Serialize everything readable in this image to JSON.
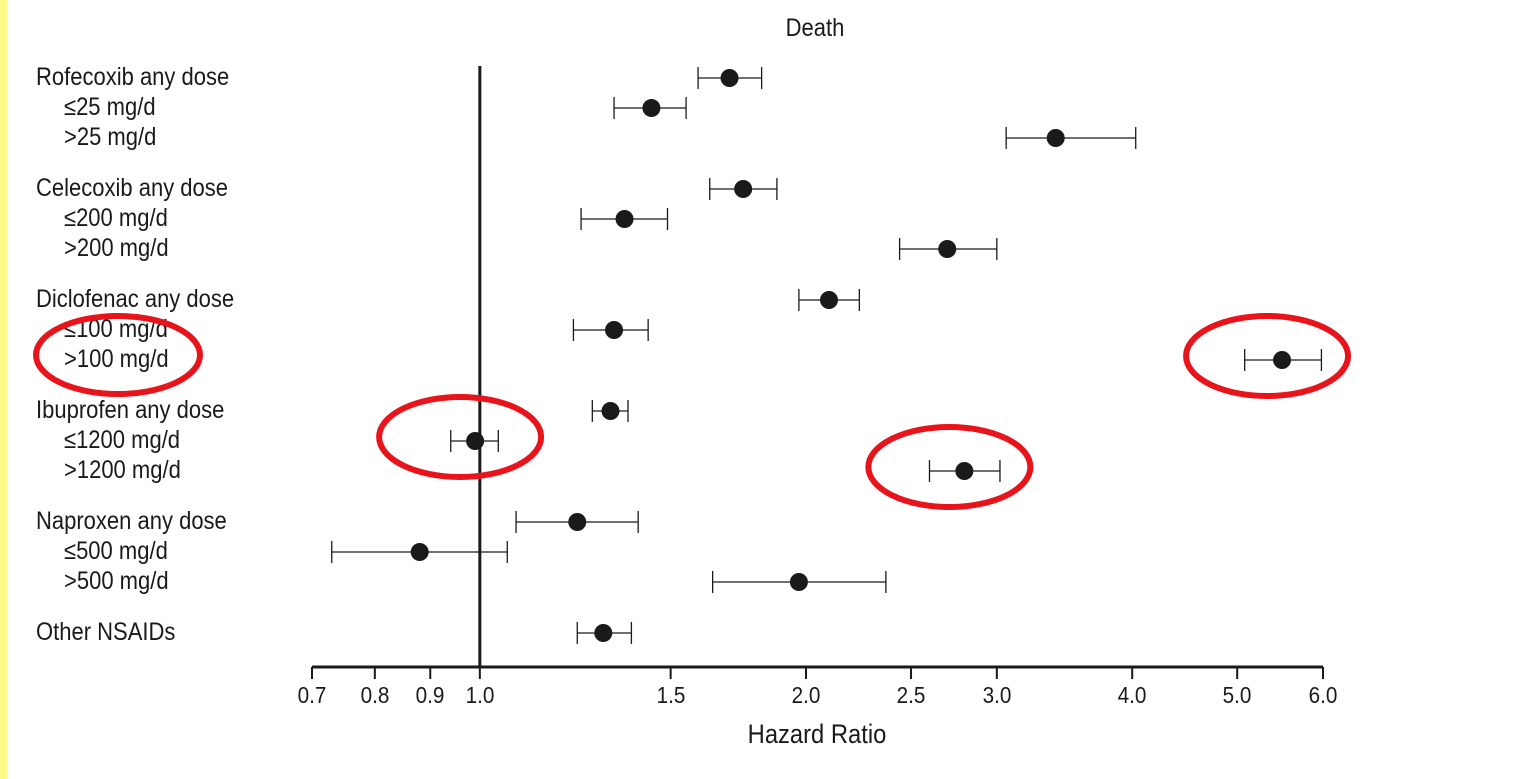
{
  "chart_data": {
    "type": "forest",
    "title": "Death",
    "xlabel": "Hazard Ratio",
    "x_scale": "log",
    "xlim": [
      0.7,
      6.0
    ],
    "reference_line": 1.0,
    "x_ticks": [
      "0.7",
      "0.8",
      "0.9",
      "1.0",
      "1.5",
      "2.0",
      "2.5",
      "3.0",
      "4.0",
      "5.0",
      "6.0"
    ],
    "rows": [
      {
        "label": "Rofecoxib any dose",
        "indent": false,
        "hr": 1.7,
        "ci": [
          1.59,
          1.82
        ]
      },
      {
        "label": "≤25 mg/d",
        "indent": true,
        "hr": 1.44,
        "ci": [
          1.33,
          1.55
        ]
      },
      {
        "label": ">25 mg/d",
        "indent": true,
        "hr": 3.4,
        "ci": [
          3.06,
          4.03
        ]
      },
      {
        "label": "Celecoxib any dose",
        "indent": false,
        "hr": 1.75,
        "ci": [
          1.63,
          1.88
        ]
      },
      {
        "label": "≤200 mg/d",
        "indent": true,
        "hr": 1.36,
        "ci": [
          1.24,
          1.49
        ]
      },
      {
        "label": ">200 mg/d",
        "indent": true,
        "hr": 2.7,
        "ci": [
          2.44,
          3.0
        ]
      },
      {
        "label": "Diclofenac any dose",
        "indent": false,
        "hr": 2.1,
        "ci": [
          1.97,
          2.24
        ]
      },
      {
        "label": "≤100 mg/d",
        "indent": true,
        "hr": 1.33,
        "ci": [
          1.22,
          1.43
        ]
      },
      {
        "label": ">100 mg/d",
        "indent": true,
        "hr": 5.5,
        "ci": [
          5.08,
          5.98
        ]
      },
      {
        "label": "Ibuprofen any dose",
        "indent": false,
        "hr": 1.32,
        "ci": [
          1.27,
          1.37
        ]
      },
      {
        "label": "≤1200 mg/d",
        "indent": true,
        "hr": 0.99,
        "ci": [
          0.94,
          1.04
        ]
      },
      {
        "label": ">1200 mg/d",
        "indent": true,
        "hr": 2.8,
        "ci": [
          2.6,
          3.02
        ]
      },
      {
        "label": "Naproxen any dose",
        "indent": false,
        "hr": 1.23,
        "ci": [
          1.08,
          1.4
        ]
      },
      {
        "label": "≤500 mg/d",
        "indent": true,
        "hr": 0.88,
        "ci": [
          0.73,
          1.06
        ]
      },
      {
        "label": ">500 mg/d",
        "indent": true,
        "hr": 1.97,
        "ci": [
          1.64,
          2.37
        ]
      },
      {
        "label": "Other NSAIDs",
        "indent": false,
        "hr": 1.3,
        "ci": [
          1.23,
          1.38
        ]
      }
    ],
    "highlighted_rows": [
      ">100 mg/d",
      "≤1200 mg/d",
      ">1200 mg/d"
    ]
  },
  "colors": {
    "left_strip": "#fff98a",
    "highlight_ring": "#e8141b",
    "ink": "#1a1a1a"
  }
}
